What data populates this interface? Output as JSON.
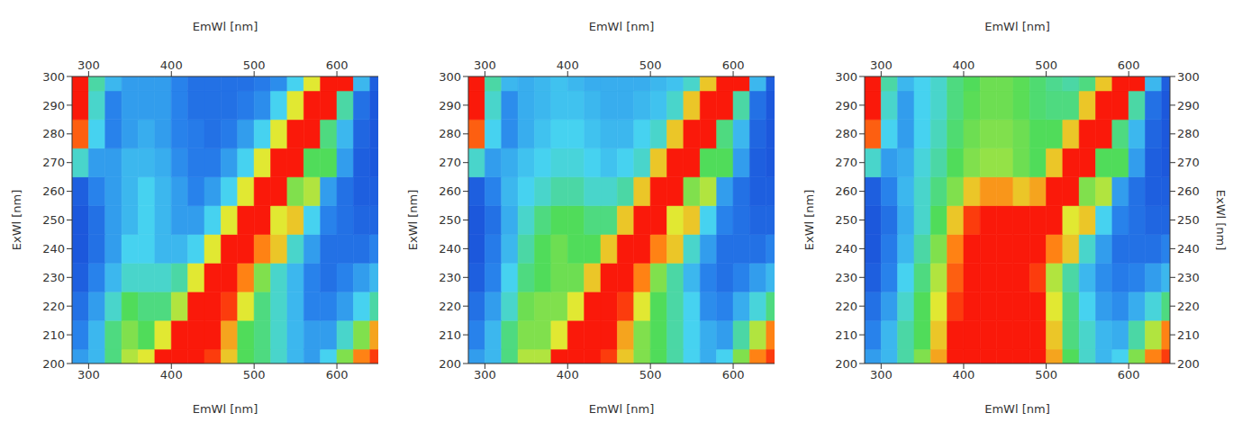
{
  "chart_data": [
    {
      "type": "heatmap",
      "xlabel": "EmWl [nm]",
      "x2label": "EmWl [nm]",
      "ylabel": "ExWl [nm]",
      "xlim": [
        280,
        650
      ],
      "xticks": [
        300,
        400,
        500,
        600
      ],
      "ylim": [
        200,
        300
      ],
      "yticks": [
        200,
        210,
        220,
        230,
        240,
        250,
        260,
        270,
        280,
        290,
        300
      ],
      "zlim": [
        0,
        100
      ],
      "x": [
        290,
        310,
        330,
        350,
        370,
        390,
        410,
        430,
        450,
        470,
        490,
        510,
        530,
        550,
        570,
        590,
        610,
        630,
        650
      ],
      "y": [
        200,
        210,
        220,
        230,
        240,
        250,
        260,
        270,
        280,
        290,
        300
      ],
      "z": [
        [
          25,
          30,
          50,
          65,
          70,
          100,
          100,
          100,
          95,
          75,
          55,
          50,
          40,
          30,
          25,
          35,
          60,
          85,
          95
        ],
        [
          20,
          30,
          50,
          60,
          55,
          70,
          100,
          100,
          100,
          80,
          55,
          50,
          40,
          30,
          25,
          25,
          40,
          60,
          80
        ],
        [
          15,
          25,
          40,
          55,
          50,
          50,
          65,
          100,
          100,
          95,
          70,
          50,
          40,
          30,
          20,
          20,
          25,
          35,
          45
        ],
        [
          10,
          20,
          30,
          40,
          40,
          40,
          45,
          70,
          100,
          100,
          85,
          60,
          40,
          30,
          20,
          15,
          20,
          25,
          30
        ],
        [
          8,
          15,
          25,
          35,
          35,
          30,
          30,
          35,
          70,
          100,
          100,
          85,
          75,
          40,
          25,
          15,
          15,
          15,
          20
        ],
        [
          8,
          15,
          25,
          30,
          35,
          30,
          25,
          25,
          35,
          70,
          100,
          100,
          70,
          75,
          35,
          20,
          15,
          12,
          12
        ],
        [
          10,
          20,
          25,
          30,
          35,
          30,
          25,
          20,
          25,
          35,
          70,
          100,
          100,
          60,
          65,
          25,
          15,
          10,
          10
        ],
        [
          40,
          25,
          25,
          30,
          30,
          28,
          22,
          18,
          18,
          25,
          35,
          70,
          100,
          100,
          55,
          55,
          25,
          10,
          8
        ],
        [
          90,
          35,
          20,
          25,
          28,
          25,
          20,
          18,
          15,
          18,
          25,
          35,
          70,
          100,
          100,
          50,
          30,
          12,
          8
        ],
        [
          100,
          40,
          20,
          25,
          25,
          25,
          20,
          15,
          15,
          15,
          18,
          22,
          35,
          70,
          100,
          100,
          45,
          15,
          8
        ],
        [
          100,
          45,
          30,
          25,
          25,
          25,
          20,
          15,
          15,
          15,
          15,
          18,
          22,
          35,
          70,
          100,
          100,
          30,
          10
        ]
      ]
    },
    {
      "type": "heatmap",
      "xlabel": "EmWl [nm]",
      "x2label": "EmWl [nm]",
      "ylabel": "ExWl [nm]",
      "xlim": [
        280,
        650
      ],
      "xticks": [
        300,
        400,
        500,
        600
      ],
      "ylim": [
        200,
        300
      ],
      "yticks": [
        200,
        210,
        220,
        230,
        240,
        250,
        260,
        270,
        280,
        290,
        300
      ],
      "zlim": [
        0,
        100
      ],
      "x": [
        290,
        310,
        330,
        350,
        370,
        390,
        410,
        430,
        450,
        470,
        490,
        510,
        530,
        550,
        570,
        590,
        610,
        630,
        650
      ],
      "y": [
        200,
        210,
        220,
        230,
        240,
        250,
        260,
        270,
        280,
        290,
        300
      ],
      "z": [
        [
          25,
          30,
          50,
          65,
          65,
          100,
          100,
          100,
          95,
          75,
          60,
          55,
          45,
          35,
          28,
          35,
          60,
          85,
          95
        ],
        [
          20,
          30,
          50,
          60,
          60,
          70,
          100,
          100,
          100,
          80,
          60,
          55,
          45,
          35,
          28,
          25,
          45,
          65,
          85
        ],
        [
          15,
          25,
          40,
          58,
          60,
          60,
          70,
          100,
          100,
          95,
          70,
          55,
          45,
          35,
          22,
          20,
          28,
          38,
          50
        ],
        [
          10,
          20,
          35,
          50,
          55,
          58,
          58,
          75,
          100,
          100,
          85,
          60,
          45,
          30,
          20,
          15,
          20,
          25,
          30
        ],
        [
          8,
          18,
          30,
          45,
          55,
          58,
          55,
          55,
          75,
          100,
          100,
          85,
          75,
          40,
          25,
          15,
          15,
          15,
          20
        ],
        [
          8,
          15,
          28,
          40,
          50,
          55,
          55,
          50,
          50,
          75,
          100,
          100,
          70,
          75,
          35,
          20,
          15,
          12,
          12
        ],
        [
          10,
          20,
          30,
          35,
          40,
          45,
          45,
          40,
          40,
          45,
          75,
          100,
          100,
          60,
          65,
          25,
          15,
          10,
          10
        ],
        [
          40,
          25,
          28,
          32,
          35,
          38,
          38,
          35,
          32,
          35,
          40,
          75,
          100,
          100,
          55,
          55,
          25,
          10,
          8
        ],
        [
          90,
          35,
          22,
          28,
          32,
          35,
          35,
          32,
          30,
          30,
          35,
          40,
          75,
          100,
          100,
          50,
          30,
          12,
          8
        ],
        [
          100,
          40,
          22,
          28,
          30,
          32,
          32,
          30,
          28,
          28,
          30,
          32,
          40,
          75,
          100,
          100,
          45,
          15,
          8
        ],
        [
          100,
          45,
          30,
          28,
          30,
          32,
          30,
          28,
          28,
          28,
          28,
          30,
          32,
          40,
          75,
          100,
          100,
          30,
          10
        ]
      ]
    },
    {
      "type": "heatmap",
      "xlabel": "EmWl [nm]",
      "x2label": "EmWl [nm]",
      "ylabel": "ExWl [nm]",
      "y2label": "ExWl [nm]",
      "xlim": [
        280,
        650
      ],
      "xticks": [
        300,
        400,
        500,
        600
      ],
      "ylim": [
        200,
        300
      ],
      "yticks": [
        200,
        210,
        220,
        230,
        240,
        250,
        260,
        270,
        280,
        290,
        300
      ],
      "y2lim": [
        200,
        300
      ],
      "y2ticks": [
        200,
        210,
        220,
        230,
        240,
        250,
        260,
        270,
        280,
        290,
        300
      ],
      "zlim": [
        0,
        100
      ],
      "x": [
        290,
        310,
        330,
        350,
        370,
        390,
        410,
        430,
        450,
        470,
        490,
        510,
        530,
        550,
        570,
        590,
        610,
        630,
        650
      ],
      "y": [
        200,
        210,
        220,
        230,
        240,
        250,
        260,
        270,
        280,
        290,
        300
      ],
      "z": [
        [
          25,
          30,
          45,
          60,
          80,
          100,
          100,
          100,
          100,
          100,
          100,
          80,
          55,
          40,
          30,
          35,
          60,
          85,
          95
        ],
        [
          20,
          30,
          45,
          55,
          75,
          100,
          100,
          100,
          100,
          100,
          100,
          75,
          50,
          40,
          30,
          28,
          45,
          65,
          85
        ],
        [
          15,
          25,
          40,
          55,
          70,
          95,
          100,
          100,
          100,
          100,
          100,
          70,
          50,
          35,
          25,
          22,
          28,
          38,
          50
        ],
        [
          10,
          20,
          35,
          50,
          65,
          90,
          100,
          100,
          100,
          100,
          95,
          65,
          45,
          30,
          22,
          18,
          20,
          25,
          30
        ],
        [
          8,
          18,
          30,
          45,
          60,
          85,
          100,
          100,
          100,
          100,
          100,
          85,
          75,
          40,
          25,
          15,
          15,
          15,
          20
        ],
        [
          8,
          15,
          28,
          40,
          55,
          75,
          95,
          100,
          100,
          100,
          100,
          100,
          70,
          75,
          35,
          20,
          15,
          12,
          12
        ],
        [
          10,
          20,
          30,
          40,
          50,
          60,
          75,
          82,
          82,
          75,
          80,
          100,
          100,
          60,
          65,
          25,
          15,
          10,
          10
        ],
        [
          40,
          25,
          28,
          38,
          45,
          55,
          60,
          62,
          62,
          58,
          55,
          75,
          100,
          100,
          55,
          55,
          25,
          10,
          8
        ],
        [
          90,
          35,
          25,
          35,
          42,
          52,
          58,
          60,
          60,
          58,
          55,
          55,
          75,
          100,
          100,
          50,
          30,
          12,
          8
        ],
        [
          100,
          40,
          25,
          35,
          40,
          50,
          56,
          58,
          58,
          56,
          52,
          50,
          50,
          75,
          100,
          100,
          45,
          15,
          8
        ],
        [
          100,
          45,
          30,
          35,
          40,
          50,
          55,
          58,
          58,
          56,
          52,
          48,
          45,
          50,
          75,
          100,
          100,
          30,
          10
        ]
      ]
    }
  ]
}
